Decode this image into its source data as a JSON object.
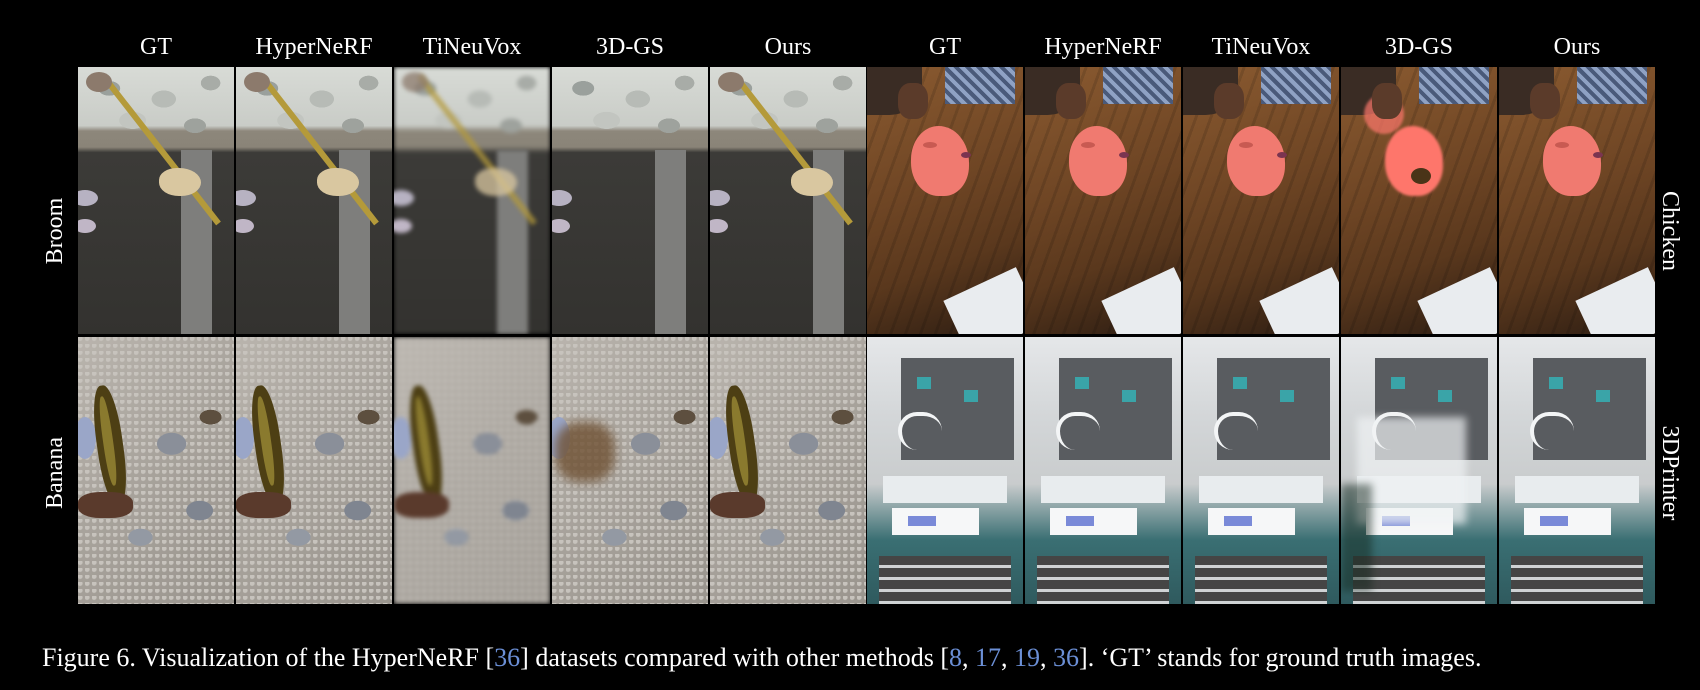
{
  "figure": {
    "method_headers": [
      "GT",
      "HyperNeRF",
      "TiNeuVox",
      "3D-GS",
      "Ours"
    ],
    "left_scenes": [
      "Broom",
      "Banana"
    ],
    "right_scenes": [
      "Chicken",
      "3DPrinter"
    ],
    "caption": {
      "text_before": "Figure 6. Visualization of the HyperNeRF [",
      "ref_main": "36",
      "text_middle": "] datasets compared with other methods [",
      "refs": [
        "8",
        "17",
        "19",
        "36"
      ],
      "sep": ", ",
      "text_after": "]. ‘GT’ stands for ground truth images."
    }
  },
  "colors": {
    "background": "#000000",
    "text": "#ffffff",
    "citation": "#6b8fd6"
  }
}
